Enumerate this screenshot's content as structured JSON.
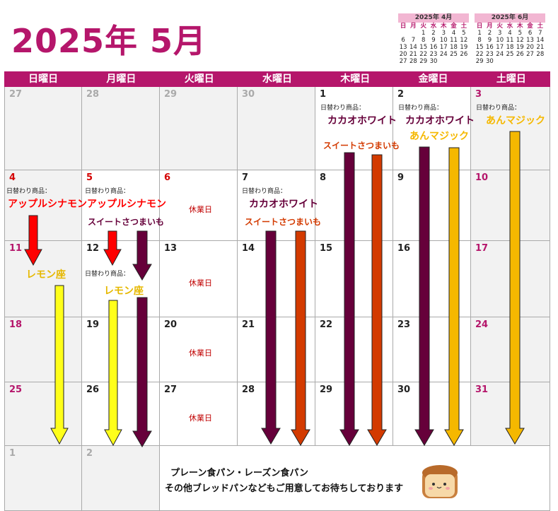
{
  "title": "2025年 5月",
  "mini_cal": [
    {
      "header": "2025年 4月",
      "dows": [
        "日",
        "月",
        "火",
        "水",
        "木",
        "金",
        "土"
      ],
      "rows": [
        [
          "",
          "",
          "1",
          "2",
          "3",
          "4",
          "5"
        ],
        [
          "6",
          "7",
          "8",
          "9",
          "10",
          "11",
          "12"
        ],
        [
          "13",
          "14",
          "15",
          "16",
          "17",
          "18",
          "19"
        ],
        [
          "20",
          "21",
          "22",
          "23",
          "24",
          "25",
          "26"
        ],
        [
          "27",
          "28",
          "29",
          "30",
          "",
          "",
          ""
        ]
      ]
    },
    {
      "header": "2025年 6月",
      "dows": [
        "日",
        "月",
        "火",
        "水",
        "木",
        "金",
        "土"
      ],
      "rows": [
        [
          "1",
          "2",
          "3",
          "4",
          "5",
          "6",
          "7"
        ],
        [
          "8",
          "9",
          "10",
          "11",
          "12",
          "13",
          "14"
        ],
        [
          "15",
          "16",
          "17",
          "18",
          "19",
          "20",
          "21"
        ],
        [
          "22",
          "23",
          "24",
          "25",
          "26",
          "27",
          "28"
        ],
        [
          "29",
          "30",
          "",
          "",
          "",
          "",
          ""
        ]
      ]
    }
  ],
  "weekdays": [
    "日曜日",
    "月曜日",
    "火曜日",
    "水曜日",
    "木曜日",
    "金曜日",
    "土曜日"
  ],
  "days": [
    [
      "27",
      "28",
      "29",
      "30",
      "1",
      "2",
      "3"
    ],
    [
      "4",
      "5",
      "6",
      "7",
      "8",
      "9",
      "10"
    ],
    [
      "11",
      "12",
      "13",
      "14",
      "15",
      "16",
      "17"
    ],
    [
      "18",
      "19",
      "20",
      "21",
      "22",
      "23",
      "24"
    ],
    [
      "25",
      "26",
      "27",
      "28",
      "29",
      "30",
      "31"
    ],
    [
      "1",
      "2",
      "",
      "",
      "",
      "",
      ""
    ]
  ],
  "labels": {
    "daily_item": "日替わり商品：",
    "closed": "休業日"
  },
  "products": {
    "cacao_white": "カカオホワイト",
    "sweet_potato": "スイートさつまいも",
    "an_magic": "あんマジック",
    "apple_cinnamon": "アップルシナモン",
    "lemon": "レモン座"
  },
  "colors": {
    "cacao_white": "#66003a",
    "sweet_potato": "#d33a00",
    "an_magic": "#f5b800",
    "apple_cinnamon": "#ff0000",
    "lemon": "#ffff1a",
    "brand": "#b5166b"
  },
  "footer": {
    "line1": "プレーン食パン・レーズン食パン",
    "line2": "その他ブレッドパンなどもご用意してお待ちしております",
    "mascot": "bread-mascot-icon"
  }
}
